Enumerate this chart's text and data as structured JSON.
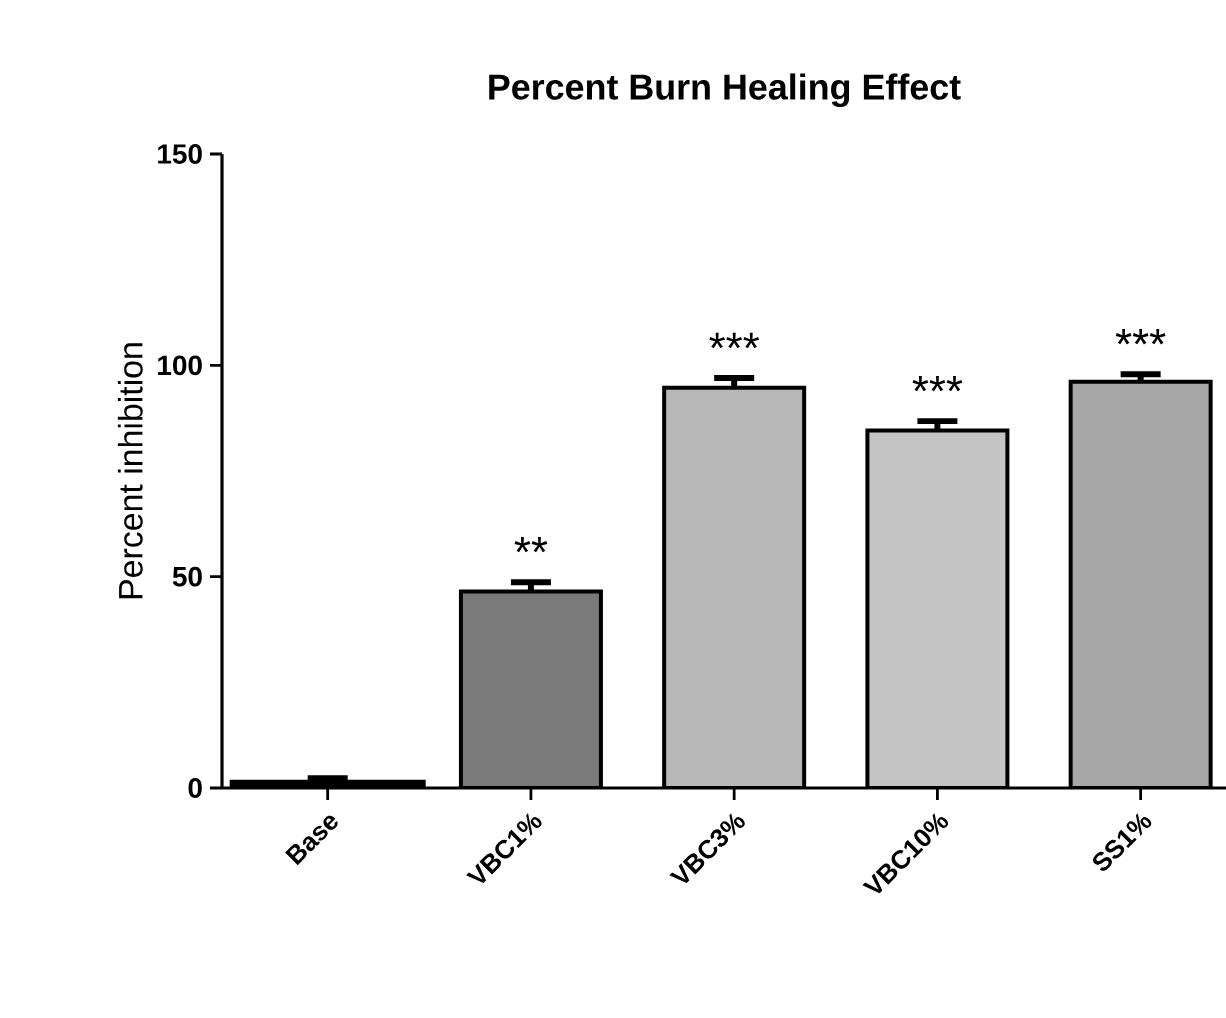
{
  "chart_data": {
    "type": "bar",
    "title": "Percent Burn Healing Effect",
    "ylabel": "Percent inhibition",
    "categories": [
      "Base",
      "VBC1%",
      "VBC3%",
      "VBC10%",
      "SS1%"
    ],
    "values": [
      1.5,
      46.5,
      94.7,
      84.6,
      96.1
    ],
    "errors": [
      0.8,
      2.2,
      2.3,
      2.2,
      1.8
    ],
    "colors": [
      "#000000",
      "#7a7a7a",
      "#b8b8b8",
      "#c4c4c4",
      "#a6a6a6"
    ],
    "ylim": [
      0,
      150
    ],
    "yticks": [
      0,
      50,
      100,
      150
    ],
    "grid": false,
    "annotations": [
      "**",
      "***",
      "***",
      "***"
    ]
  }
}
